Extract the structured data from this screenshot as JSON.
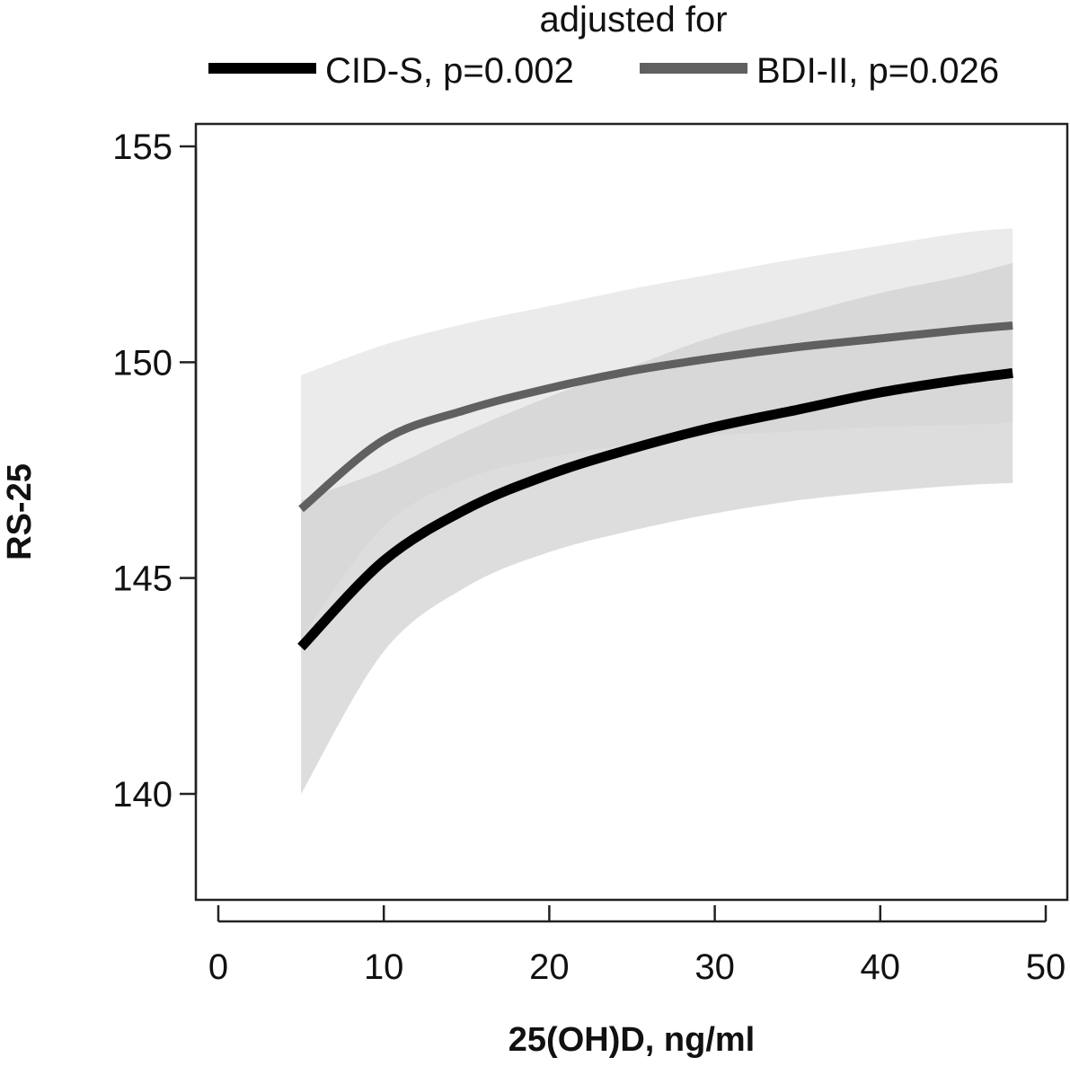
{
  "chart_data": {
    "type": "line",
    "title": "",
    "xlabel": "25(OH)D, ng/ml",
    "ylabel": "RS-25",
    "xlim": [
      0,
      50
    ],
    "ylim": [
      138,
      156
    ],
    "x_ticks": [
      0,
      10,
      20,
      30,
      40,
      50
    ],
    "y_ticks": [
      140,
      145,
      150,
      155
    ],
    "grid": false,
    "legend": {
      "title": "adjusted for",
      "placement": "top-center",
      "entries": [
        "CID-S, p=0.002",
        "BDI-II, p=0.026"
      ]
    },
    "x": [
      5,
      10,
      15,
      20,
      25,
      30,
      35,
      40,
      45,
      48
    ],
    "series": [
      {
        "name": "CID-S, p=0.002",
        "color": "#000000",
        "values": [
          143.4,
          145.4,
          146.6,
          147.4,
          148.0,
          148.5,
          148.9,
          149.3,
          149.6,
          149.75
        ],
        "ci_lower": [
          140.0,
          143.3,
          144.8,
          145.6,
          146.1,
          146.5,
          146.8,
          147.0,
          147.15,
          147.2
        ],
        "ci_upper": [
          146.8,
          147.5,
          148.4,
          149.2,
          149.9,
          150.6,
          151.1,
          151.6,
          152.0,
          152.3
        ]
      },
      {
        "name": "BDI-II, p=0.026",
        "color": "#606060",
        "values": [
          146.6,
          148.2,
          148.9,
          149.4,
          149.8,
          150.1,
          150.35,
          150.55,
          150.75,
          150.85
        ],
        "ci_lower": [
          143.6,
          146.2,
          147.3,
          147.8,
          148.1,
          148.3,
          148.4,
          148.5,
          148.55,
          148.6
        ],
        "ci_upper": [
          149.7,
          150.4,
          150.9,
          151.3,
          151.7,
          152.05,
          152.4,
          152.7,
          153.0,
          153.1
        ]
      }
    ]
  },
  "colors": {
    "band_light": "#ebebeb",
    "band_mid": "#d2d2d2",
    "band_overlap": "#c0c0c0",
    "axis": "#222222"
  }
}
